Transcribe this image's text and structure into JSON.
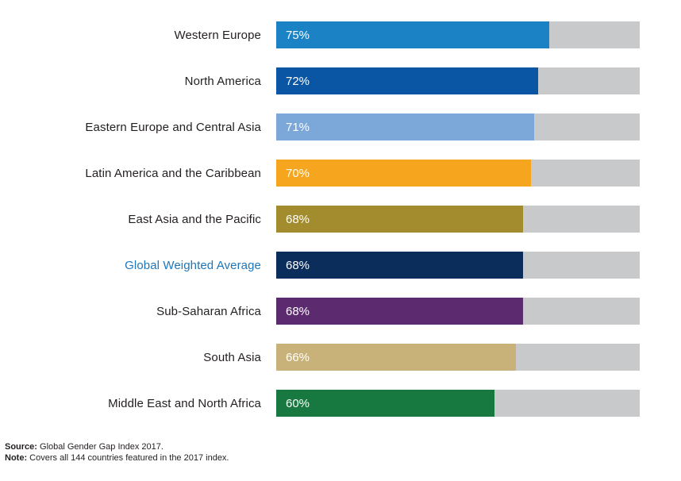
{
  "chart_data": {
    "type": "bar",
    "orientation": "horizontal",
    "title": "",
    "xlabel": "",
    "ylabel": "",
    "unit": "%",
    "xlim": [
      0,
      100
    ],
    "grid": false,
    "legend": false,
    "track_color": "#c8c9ca",
    "categories": [
      "Western Europe",
      "North America",
      "Eastern Europe and Central Asia",
      "Latin America and the Caribbean",
      "East Asia and the Pacific",
      "Global Weighted Average",
      "Sub-Saharan Africa",
      "South Asia",
      "Middle East and North Africa"
    ],
    "values": [
      75,
      72,
      71,
      70,
      68,
      68,
      68,
      66,
      60
    ],
    "rows": [
      {
        "label": "Western Europe",
        "value": 75,
        "value_label": "75%",
        "color": "#1b83c5",
        "label_color": "#231f20"
      },
      {
        "label": "North America",
        "value": 72,
        "value_label": "72%",
        "color": "#0b56a4",
        "label_color": "#231f20"
      },
      {
        "label": "Eastern Europe and Central Asia",
        "value": 71,
        "value_label": "71%",
        "color": "#7ba7d9",
        "label_color": "#231f20"
      },
      {
        "label": "Latin America and the Caribbean",
        "value": 70,
        "value_label": "70%",
        "color": "#f6a51f",
        "label_color": "#231f20"
      },
      {
        "label": "East Asia and the Pacific",
        "value": 68,
        "value_label": "68%",
        "color": "#a28c2e",
        "label_color": "#231f20"
      },
      {
        "label": "Global Weighted Average",
        "value": 68,
        "value_label": "68%",
        "color": "#0b2d5c",
        "label_color": "#1d76ba"
      },
      {
        "label": "Sub-Saharan Africa",
        "value": 68,
        "value_label": "68%",
        "color": "#5c2a6f",
        "label_color": "#231f20"
      },
      {
        "label": "South Asia",
        "value": 66,
        "value_label": "66%",
        "color": "#c9b279",
        "label_color": "#231f20"
      },
      {
        "label": "Middle East and North Africa",
        "value": 60,
        "value_label": "60%",
        "color": "#17793f",
        "label_color": "#231f20"
      }
    ]
  },
  "footer": {
    "source_prefix": "Source:",
    "source_text": " Global Gender Gap Index 2017.",
    "note_prefix": "Note:",
    "note_text": " Covers all 144 countries featured in the 2017 index."
  }
}
